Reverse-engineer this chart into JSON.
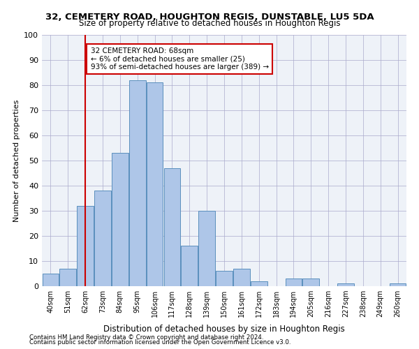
{
  "title1": "32, CEMETERY ROAD, HOUGHTON REGIS, DUNSTABLE, LU5 5DA",
  "title2": "Size of property relative to detached houses in Houghton Regis",
  "xlabel": "Distribution of detached houses by size in Houghton Regis",
  "ylabel": "Number of detached properties",
  "categories": [
    "40sqm",
    "51sqm",
    "62sqm",
    "73sqm",
    "84sqm",
    "95sqm",
    "106sqm",
    "117sqm",
    "128sqm",
    "139sqm",
    "150sqm",
    "161sqm",
    "172sqm",
    "183sqm",
    "194sqm",
    "205sqm",
    "216sqm",
    "227sqm",
    "238sqm",
    "249sqm",
    "260sqm"
  ],
  "values": [
    5,
    7,
    32,
    38,
    53,
    82,
    81,
    47,
    16,
    30,
    6,
    7,
    2,
    0,
    3,
    3,
    0,
    1,
    0,
    0,
    1
  ],
  "bar_color": "#aec6e8",
  "bar_edge_color": "#5a8fbd",
  "ref_line_x": 2,
  "ref_line_color": "#cc0000",
  "annotation_text": "32 CEMETERY ROAD: 68sqm\n← 6% of detached houses are smaller (25)\n93% of semi-detached houses are larger (389) →",
  "annotation_box_color": "#ffffff",
  "annotation_box_edge": "#cc0000",
  "ylim": [
    0,
    100
  ],
  "yticks": [
    0,
    10,
    20,
    30,
    40,
    50,
    60,
    70,
    80,
    90,
    100
  ],
  "bg_color": "#eef2f8",
  "plot_bg_color": "#eef2f8",
  "footer1": "Contains HM Land Registry data © Crown copyright and database right 2024.",
  "footer2": "Contains public sector information licensed under the Open Government Licence v3.0."
}
